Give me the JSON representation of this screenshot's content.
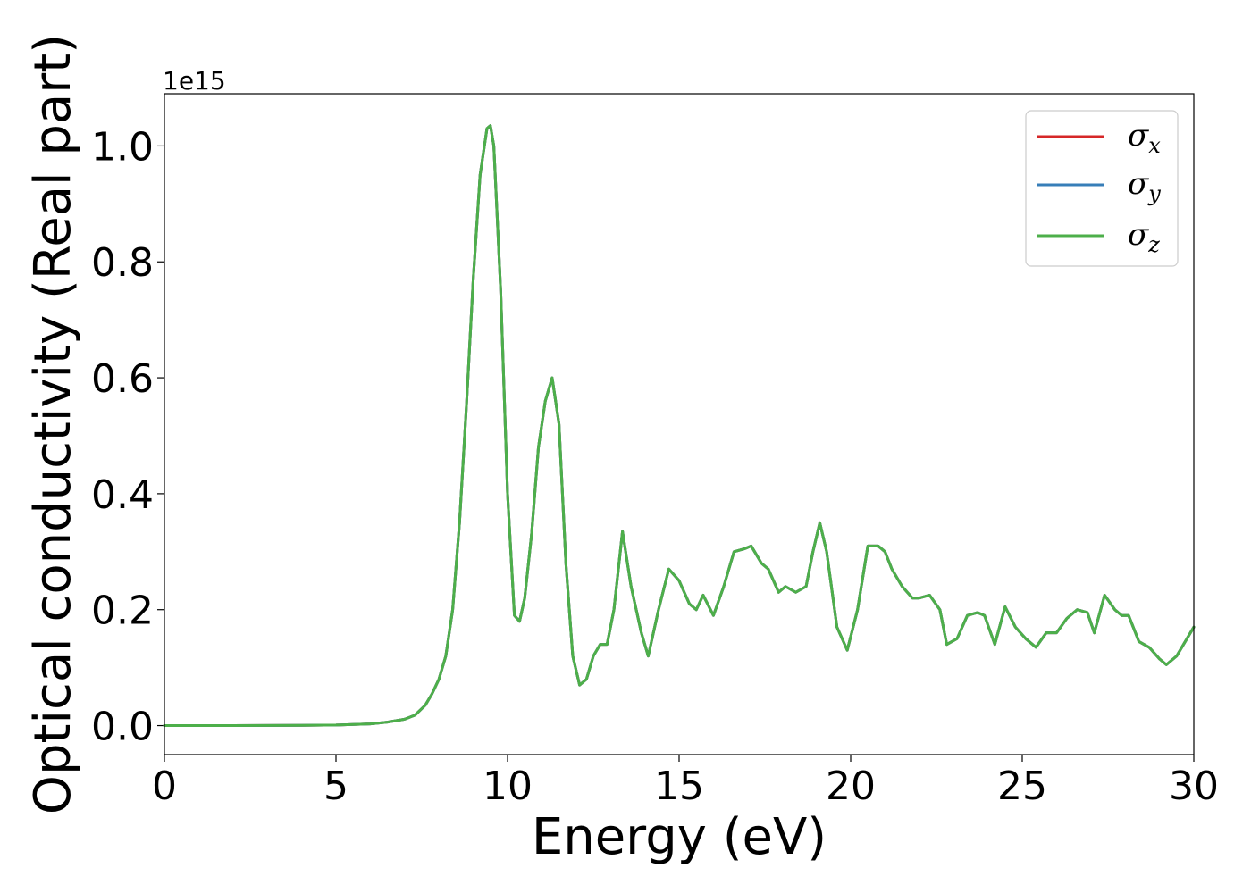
{
  "chart_data": {
    "type": "line",
    "xlabel": "Energy (eV)",
    "ylabel": "Optical conductivity (Real part)",
    "y_offset_label": "1e15",
    "xlim": [
      0,
      30
    ],
    "ylim": [
      -0.05,
      1.09
    ],
    "x_ticks": [
      0,
      5,
      10,
      15,
      20,
      25,
      30
    ],
    "x_tick_labels": [
      "0",
      "5",
      "10",
      "15",
      "20",
      "25",
      "30"
    ],
    "y_ticks": [
      0.0,
      0.2,
      0.4,
      0.6,
      0.8,
      1.0
    ],
    "y_tick_labels": [
      "0.0",
      "0.2",
      "0.4",
      "0.6",
      "0.8",
      "1.0"
    ],
    "grid": false,
    "legend_position": "top-right",
    "series": [
      {
        "name": "σx",
        "symbol": "σ",
        "sub": "x",
        "color": "#d62728"
      },
      {
        "name": "σy",
        "symbol": "σ",
        "sub": "y",
        "color": "#377eb8"
      },
      {
        "name": "σz",
        "symbol": "σ",
        "sub": "z",
        "color": "#4daf4a"
      }
    ],
    "x": [
      0,
      2,
      4,
      5,
      6,
      6.5,
      7,
      7.3,
      7.6,
      7.8,
      8.0,
      8.2,
      8.4,
      8.6,
      8.8,
      9.0,
      9.2,
      9.4,
      9.5,
      9.6,
      9.8,
      10.0,
      10.2,
      10.35,
      10.5,
      10.7,
      10.9,
      11.1,
      11.3,
      11.5,
      11.7,
      11.9,
      12.1,
      12.3,
      12.5,
      12.7,
      12.9,
      13.1,
      13.35,
      13.6,
      13.9,
      14.1,
      14.4,
      14.7,
      15.0,
      15.3,
      15.5,
      15.7,
      16.0,
      16.3,
      16.6,
      16.9,
      17.1,
      17.4,
      17.6,
      17.9,
      18.1,
      18.4,
      18.7,
      18.9,
      19.1,
      19.3,
      19.6,
      19.9,
      20.2,
      20.5,
      20.8,
      21.0,
      21.2,
      21.5,
      21.8,
      22.0,
      22.3,
      22.6,
      22.8,
      23.1,
      23.4,
      23.7,
      23.9,
      24.2,
      24.5,
      24.8,
      25.1,
      25.4,
      25.7,
      26.0,
      26.3,
      26.6,
      26.9,
      27.1,
      27.4,
      27.7,
      27.9,
      28.1,
      28.4,
      28.7,
      29.0,
      29.2,
      29.5,
      29.8,
      30.0
    ],
    "values": [
      0,
      0,
      0.0005,
      0.001,
      0.003,
      0.006,
      0.011,
      0.018,
      0.035,
      0.055,
      0.08,
      0.12,
      0.2,
      0.35,
      0.55,
      0.77,
      0.95,
      1.03,
      1.035,
      1.0,
      0.75,
      0.4,
      0.19,
      0.18,
      0.22,
      0.33,
      0.48,
      0.56,
      0.6,
      0.52,
      0.28,
      0.12,
      0.07,
      0.08,
      0.12,
      0.14,
      0.14,
      0.2,
      0.335,
      0.24,
      0.16,
      0.12,
      0.2,
      0.27,
      0.25,
      0.21,
      0.2,
      0.225,
      0.19,
      0.24,
      0.3,
      0.305,
      0.31,
      0.28,
      0.27,
      0.23,
      0.24,
      0.23,
      0.24,
      0.3,
      0.35,
      0.3,
      0.17,
      0.13,
      0.2,
      0.31,
      0.31,
      0.3,
      0.27,
      0.24,
      0.22,
      0.22,
      0.225,
      0.2,
      0.14,
      0.15,
      0.19,
      0.195,
      0.19,
      0.14,
      0.205,
      0.17,
      0.15,
      0.135,
      0.16,
      0.16,
      0.185,
      0.2,
      0.195,
      0.16,
      0.225,
      0.2,
      0.19,
      0.19,
      0.145,
      0.135,
      0.115,
      0.105,
      0.12,
      0.15,
      0.17
    ]
  }
}
